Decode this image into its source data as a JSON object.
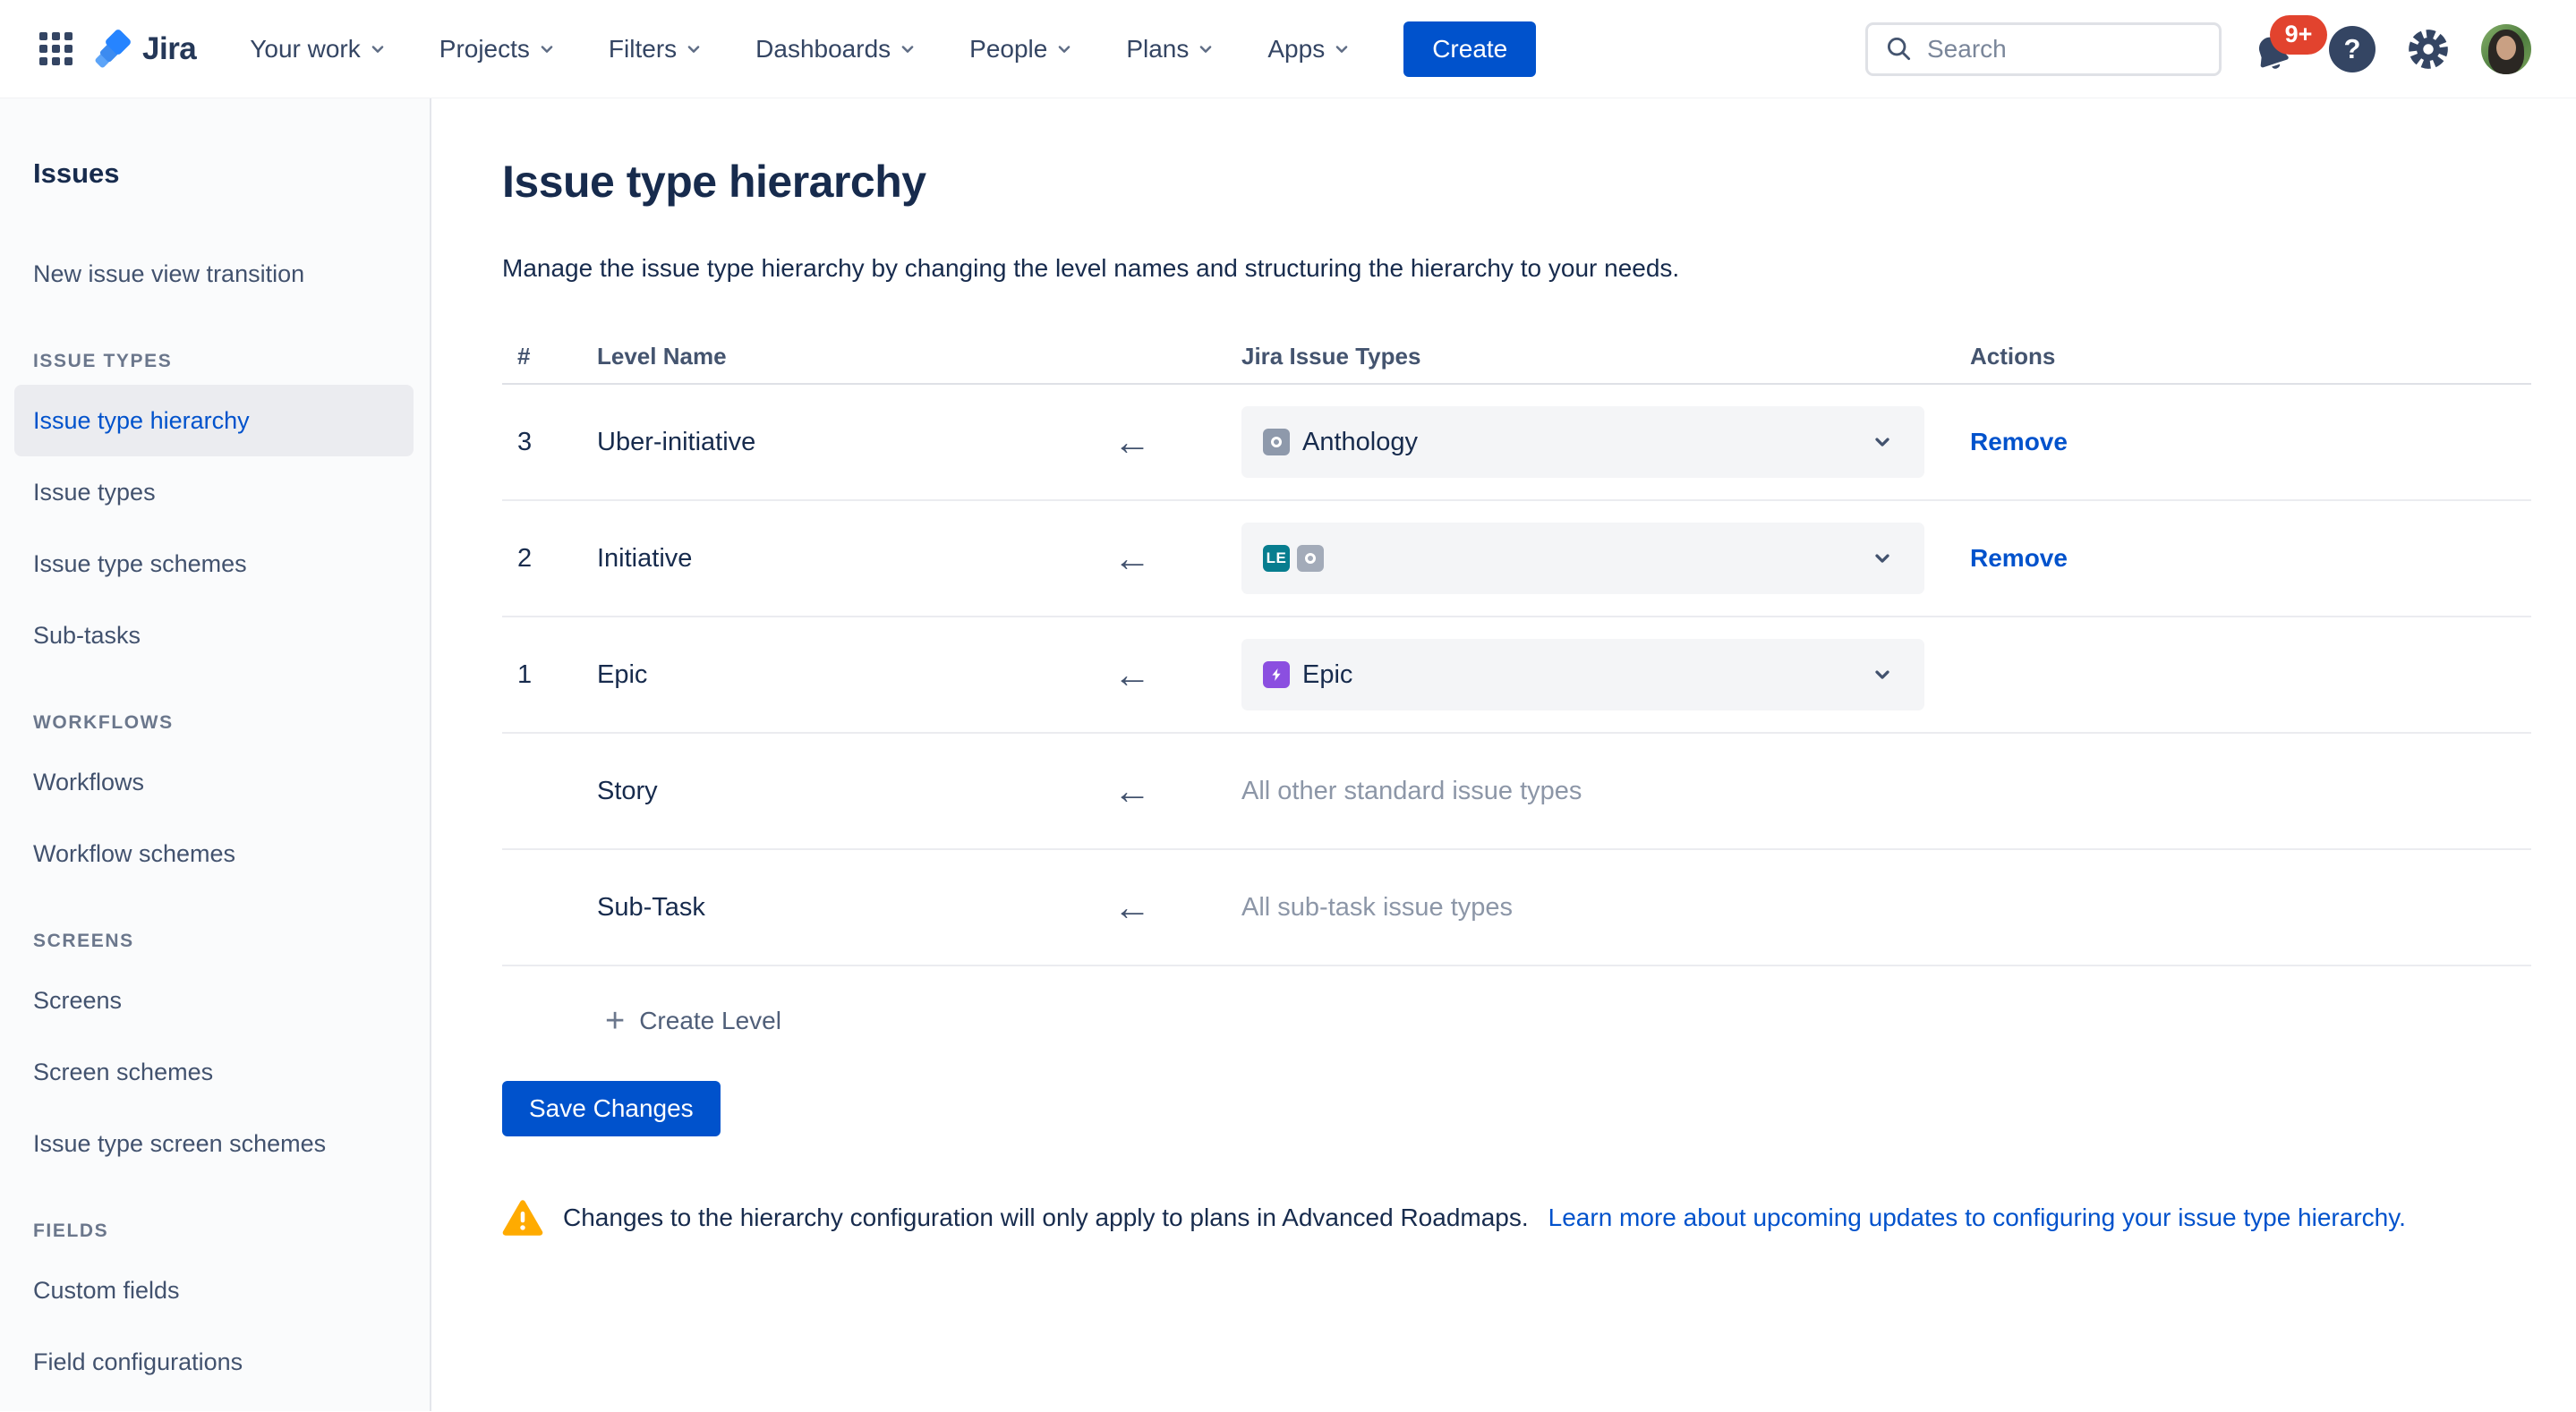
{
  "nav": {
    "logo_text": "Jira",
    "items": [
      "Your work",
      "Projects",
      "Filters",
      "Dashboards",
      "People",
      "Plans",
      "Apps"
    ],
    "create_label": "Create",
    "search_placeholder": "Search",
    "notifications_badge": "9+",
    "help_glyph": "?"
  },
  "sidebar": {
    "title": "Issues",
    "sections": [
      {
        "header": "",
        "items": [
          {
            "label": "New issue view transition",
            "selected": false
          }
        ]
      },
      {
        "header": "ISSUE TYPES",
        "items": [
          {
            "label": "Issue type hierarchy",
            "selected": true
          },
          {
            "label": "Issue types",
            "selected": false
          },
          {
            "label": "Issue type schemes",
            "selected": false
          },
          {
            "label": "Sub-tasks",
            "selected": false
          }
        ]
      },
      {
        "header": "WORKFLOWS",
        "items": [
          {
            "label": "Workflows",
            "selected": false
          },
          {
            "label": "Workflow schemes",
            "selected": false
          }
        ]
      },
      {
        "header": "SCREENS",
        "items": [
          {
            "label": "Screens",
            "selected": false
          },
          {
            "label": "Screen schemes",
            "selected": false
          },
          {
            "label": "Issue type screen schemes",
            "selected": false
          }
        ]
      },
      {
        "header": "FIELDS",
        "items": [
          {
            "label": "Custom fields",
            "selected": false
          },
          {
            "label": "Field configurations",
            "selected": false
          }
        ]
      }
    ]
  },
  "main": {
    "title": "Issue type hierarchy",
    "description": "Manage the issue type hierarchy by changing the level names and structuring the hierarchy to your needs.",
    "table": {
      "headers": {
        "num": "#",
        "name": "Level Name",
        "types": "Jira Issue Types",
        "actions": "Actions"
      },
      "rows": [
        {
          "num": "3",
          "name": "Uber-initiative",
          "dropdown": true,
          "chips": [
            {
              "type": "icon-circle",
              "bg": "#8E99AB"
            }
          ],
          "value": "Anthology",
          "placeholder": "",
          "action": "Remove"
        },
        {
          "num": "2",
          "name": "Initiative",
          "dropdown": true,
          "chips": [
            {
              "type": "text",
              "label": "LE",
              "bg": "#077D8F"
            },
            {
              "type": "icon-circle",
              "bg": "#A3ABB9"
            }
          ],
          "value": "",
          "placeholder": "",
          "action": "Remove"
        },
        {
          "num": "1",
          "name": "Epic",
          "dropdown": true,
          "chips": [
            {
              "type": "epic-bolt",
              "bg": "#8B4FE0"
            }
          ],
          "value": "Epic",
          "placeholder": "",
          "action": ""
        },
        {
          "num": "",
          "name": "Story",
          "dropdown": false,
          "chips": [],
          "value": "",
          "placeholder": "All other standard issue types",
          "action": ""
        },
        {
          "num": "",
          "name": "Sub-Task",
          "dropdown": false,
          "chips": [],
          "value": "",
          "placeholder": "All sub-task issue types",
          "action": ""
        }
      ]
    },
    "create_level_label": "Create Level",
    "create_level_plus": "+",
    "save_button_label": "Save Changes",
    "warning_text": "Changes to the hierarchy configuration will only apply to plans in Advanced Roadmaps.",
    "warning_link": "Learn more about upcoming updates to configuring your issue type hierarchy."
  },
  "colors": {
    "accent_blue": "#0052CC",
    "text_primary": "#172B4D",
    "text_secondary": "#42526E",
    "muted_gray": "#8C96A7",
    "warning_yellow": "#FFAB00",
    "badge_red": "#E2432E",
    "dropdown_bg": "#F4F5F7",
    "selected_pill_bg": "#EBECF0"
  }
}
